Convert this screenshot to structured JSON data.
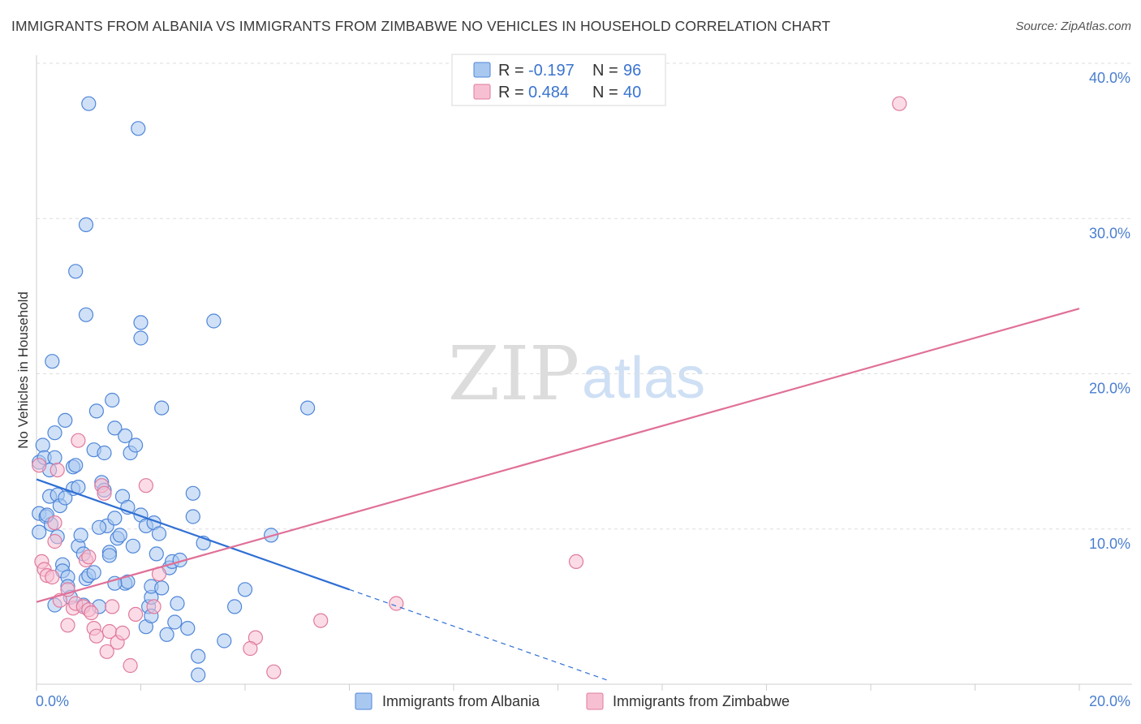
{
  "title": "IMMIGRANTS FROM ALBANIA VS IMMIGRANTS FROM ZIMBABWE NO VEHICLES IN HOUSEHOLD CORRELATION CHART",
  "source": "Source: ZipAtlas.com",
  "watermark": {
    "zip": "ZIP",
    "atlas": "atlas"
  },
  "colors": {
    "albania_fill": "#a9c8f0",
    "albania_stroke": "#4f86d9",
    "albania_line": "#2f6fd4",
    "zimbabwe_fill": "#f7c0d2",
    "zimbabwe_stroke": "#e07a9d",
    "zimbabwe_line": "#e07098",
    "grid": "#dedede",
    "tick": "#4a7fcf"
  },
  "legend": {
    "rows": [
      {
        "series": "albania",
        "r_label": "R =",
        "r_value": "-0.197",
        "n_label": "N =",
        "n_value": "96"
      },
      {
        "series": "zimbabwe",
        "r_label": "R =",
        "r_value": "0.484",
        "n_label": "N =",
        "n_value": "40"
      }
    ]
  },
  "bottom_legend": [
    {
      "series": "albania",
      "label": "Immigrants from Albania"
    },
    {
      "series": "zimbabwe",
      "label": "Immigrants from Zimbabwe"
    }
  ],
  "chart_data": {
    "type": "scatter",
    "title": "IMMIGRANTS FROM ALBANIA VS IMMIGRANTS FROM ZIMBABWE NO VEHICLES IN HOUSEHOLD CORRELATION CHART",
    "xlabel": "",
    "ylabel": "No Vehicles in Household",
    "xlim": [
      0,
      20
    ],
    "ylim": [
      0,
      40
    ],
    "x_tick_labels": [
      {
        "value": 0,
        "label": "0.0%"
      },
      {
        "value": 20,
        "label": "20.0%"
      }
    ],
    "y_tick_labels": [
      {
        "value": 10,
        "label": "10.0%"
      },
      {
        "value": 20,
        "label": "20.0%"
      },
      {
        "value": 30,
        "label": "30.0%"
      },
      {
        "value": 40,
        "label": "40.0%"
      }
    ],
    "y_gridlines": [
      10,
      20,
      30,
      40
    ],
    "series": [
      {
        "name": "Immigrants from Albania",
        "key": "albania",
        "R": -0.197,
        "N": 96,
        "trendline": {
          "x_start": 0,
          "y_start": 13.2,
          "x_end": 6.0,
          "y_end": 6.1,
          "dashed_to_x": 11.0,
          "dashed_to_y": 0.2
        },
        "points": [
          [
            0.05,
            9.8
          ],
          [
            0.05,
            11.0
          ],
          [
            0.05,
            14.3
          ],
          [
            0.12,
            15.4
          ],
          [
            0.15,
            14.6
          ],
          [
            0.18,
            10.8
          ],
          [
            0.25,
            13.8
          ],
          [
            0.25,
            12.1
          ],
          [
            0.28,
            10.3
          ],
          [
            0.35,
            16.2
          ],
          [
            0.35,
            14.6
          ],
          [
            0.35,
            5.1
          ],
          [
            0.4,
            9.5
          ],
          [
            0.4,
            12.2
          ],
          [
            0.45,
            11.5
          ],
          [
            0.5,
            7.7
          ],
          [
            0.5,
            7.3
          ],
          [
            0.55,
            17.0
          ],
          [
            0.6,
            6.9
          ],
          [
            0.6,
            6.3
          ],
          [
            0.7,
            14.0
          ],
          [
            0.7,
            12.6
          ],
          [
            0.75,
            14.1
          ],
          [
            0.8,
            12.7
          ],
          [
            0.8,
            8.9
          ],
          [
            0.85,
            9.6
          ],
          [
            0.9,
            5.1
          ],
          [
            0.95,
            6.8
          ],
          [
            0.95,
            23.8
          ],
          [
            0.75,
            26.6
          ],
          [
            0.95,
            29.6
          ],
          [
            1.0,
            7.0
          ],
          [
            1.1,
            7.2
          ],
          [
            1.1,
            15.1
          ],
          [
            1.15,
            17.6
          ],
          [
            1.2,
            5.0
          ],
          [
            1.25,
            13.0
          ],
          [
            1.3,
            12.5
          ],
          [
            1.3,
            14.9
          ],
          [
            1.35,
            10.2
          ],
          [
            1.4,
            8.5
          ],
          [
            1.45,
            18.3
          ],
          [
            1.5,
            10.7
          ],
          [
            1.5,
            16.5
          ],
          [
            1.55,
            9.4
          ],
          [
            1.6,
            9.6
          ],
          [
            1.65,
            12.1
          ],
          [
            1.7,
            16.0
          ],
          [
            1.7,
            6.5
          ],
          [
            1.75,
            6.6
          ],
          [
            1.8,
            14.9
          ],
          [
            1.85,
            8.9
          ],
          [
            1.9,
            15.4
          ],
          [
            1.95,
            35.8
          ],
          [
            2.0,
            22.3
          ],
          [
            2.0,
            23.3
          ],
          [
            2.0,
            10.9
          ],
          [
            2.1,
            10.2
          ],
          [
            2.1,
            3.7
          ],
          [
            2.15,
            5.0
          ],
          [
            2.2,
            5.6
          ],
          [
            2.2,
            6.3
          ],
          [
            2.25,
            10.4
          ],
          [
            2.3,
            8.4
          ],
          [
            2.35,
            9.7
          ],
          [
            2.4,
            6.2
          ],
          [
            2.4,
            17.8
          ],
          [
            2.5,
            3.2
          ],
          [
            2.55,
            7.5
          ],
          [
            2.6,
            7.9
          ],
          [
            2.65,
            4.0
          ],
          [
            2.7,
            5.2
          ],
          [
            2.75,
            8.0
          ],
          [
            2.9,
            3.6
          ],
          [
            3.0,
            10.8
          ],
          [
            3.0,
            12.3
          ],
          [
            3.1,
            1.8
          ],
          [
            3.1,
            0.6
          ],
          [
            3.2,
            9.1
          ],
          [
            3.4,
            23.4
          ],
          [
            3.6,
            2.8
          ],
          [
            3.8,
            5.0
          ],
          [
            4.0,
            6.1
          ],
          [
            4.5,
            9.6
          ],
          [
            5.2,
            17.8
          ],
          [
            1.0,
            37.4
          ],
          [
            0.3,
            20.8
          ],
          [
            1.5,
            6.5
          ],
          [
            0.55,
            12.0
          ],
          [
            0.2,
            10.9
          ],
          [
            1.2,
            10.1
          ],
          [
            1.4,
            8.3
          ],
          [
            0.65,
            5.6
          ],
          [
            0.9,
            8.4
          ],
          [
            2.2,
            4.4
          ],
          [
            1.75,
            11.4
          ]
        ]
      },
      {
        "name": "Immigrants from Zimbabwe",
        "key": "zimbabwe",
        "R": 0.484,
        "N": 40,
        "trendline": {
          "x_start": 0,
          "y_start": 5.3,
          "x_end": 20,
          "y_end": 24.2
        },
        "points": [
          [
            0.05,
            14.1
          ],
          [
            0.1,
            7.9
          ],
          [
            0.15,
            7.4
          ],
          [
            0.2,
            7.0
          ],
          [
            0.3,
            6.9
          ],
          [
            0.35,
            9.2
          ],
          [
            0.35,
            10.4
          ],
          [
            0.4,
            13.8
          ],
          [
            0.45,
            5.4
          ],
          [
            0.6,
            6.1
          ],
          [
            0.7,
            4.9
          ],
          [
            0.75,
            5.2
          ],
          [
            0.8,
            15.7
          ],
          [
            0.9,
            5.0
          ],
          [
            0.95,
            8.0
          ],
          [
            1.0,
            4.8
          ],
          [
            1.05,
            4.6
          ],
          [
            1.1,
            3.6
          ],
          [
            1.15,
            3.1
          ],
          [
            1.25,
            12.8
          ],
          [
            1.3,
            12.3
          ],
          [
            1.35,
            2.1
          ],
          [
            1.4,
            3.4
          ],
          [
            1.45,
            5.0
          ],
          [
            1.55,
            2.7
          ],
          [
            1.65,
            3.3
          ],
          [
            1.8,
            1.2
          ],
          [
            1.9,
            4.5
          ],
          [
            2.1,
            12.8
          ],
          [
            2.25,
            5.0
          ],
          [
            2.35,
            7.1
          ],
          [
            4.2,
            3.0
          ],
          [
            4.1,
            2.3
          ],
          [
            4.55,
            0.8
          ],
          [
            5.45,
            4.1
          ],
          [
            6.9,
            5.2
          ],
          [
            10.35,
            7.9
          ],
          [
            16.55,
            37.4
          ],
          [
            0.6,
            3.8
          ],
          [
            1.0,
            8.2
          ]
        ]
      }
    ]
  }
}
